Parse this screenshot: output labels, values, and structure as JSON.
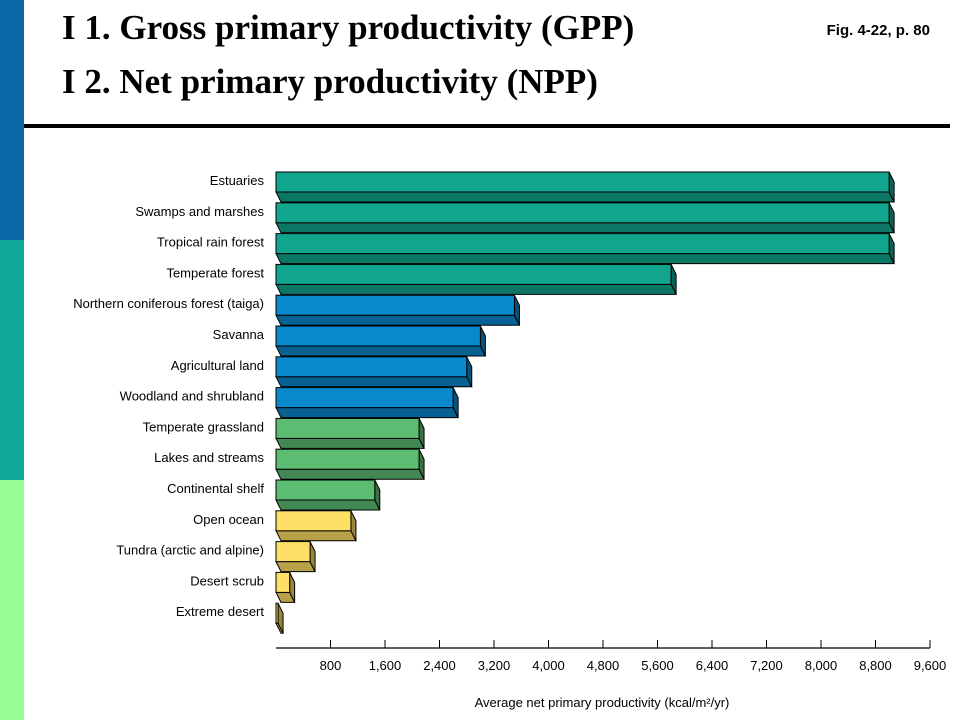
{
  "header": {
    "title_line1": "I 1. Gross primary productivity (GPP)",
    "title_line2": "I 2. Net primary productivity (NPP)",
    "figure_ref": "Fig. 4-22, p. 80"
  },
  "colors": {
    "sidebar": [
      "#0b69a7",
      "#11a798",
      "#98ff98"
    ],
    "teal": "#10a58c",
    "blue": "#0a88cc",
    "green": "#5cbd72",
    "yellow": "#ffe066"
  },
  "chart_data": {
    "type": "bar",
    "orientation": "horizontal",
    "xlabel": "Average net primary productivity (kcal/m²/yr)",
    "xlim": [
      0,
      9600
    ],
    "ticks": [
      800,
      1600,
      2400,
      3200,
      4000,
      4800,
      5600,
      6400,
      7200,
      8000,
      8800,
      9600
    ],
    "tick_labels": [
      "800",
      "1,600",
      "2,400",
      "3,200",
      "4,000",
      "4,800",
      "5,600",
      "6,400",
      "7,200",
      "8,000",
      "8,800",
      "9,600"
    ],
    "categories": [
      "Estuaries",
      "Swamps and marshes",
      "Tropical rain forest",
      "Temperate forest",
      "Northern coniferous forest (taiga)",
      "Savanna",
      "Agricultural land",
      "Woodland and shrubland",
      "Temperate grassland",
      "Lakes and streams",
      "Continental shelf",
      "Open ocean",
      "Tundra (arctic and alpine)",
      "Desert scrub",
      "Extreme desert"
    ],
    "values": [
      9000,
      9000,
      9000,
      5800,
      3500,
      3000,
      2800,
      2600,
      2100,
      2100,
      1450,
      1100,
      500,
      200,
      30
    ],
    "bar_colors": [
      "teal",
      "teal",
      "teal",
      "teal",
      "blue",
      "blue",
      "blue",
      "blue",
      "green",
      "green",
      "green",
      "yellow",
      "yellow",
      "yellow",
      "yellow"
    ],
    "grid": false,
    "legend": "none"
  }
}
